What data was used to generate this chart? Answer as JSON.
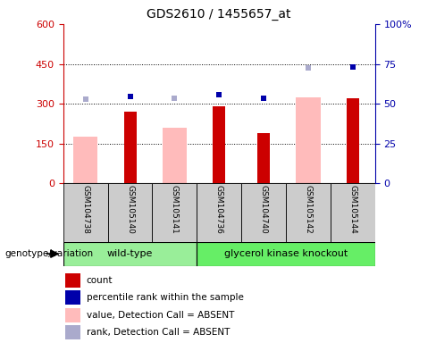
{
  "title": "GDS2610 / 1455657_at",
  "samples": [
    "GSM104738",
    "GSM105140",
    "GSM105141",
    "GSM104736",
    "GSM104740",
    "GSM105142",
    "GSM105144"
  ],
  "count": [
    null,
    270,
    null,
    290,
    190,
    null,
    320
  ],
  "value_absent": [
    175,
    null,
    210,
    null,
    null,
    325,
    null
  ],
  "rank_dark_pct": [
    null,
    54.5,
    null,
    55.5,
    53.5,
    null,
    73.0
  ],
  "rank_absent_pct": [
    53.0,
    null,
    53.5,
    null,
    null,
    72.5,
    null
  ],
  "ylim_left": [
    0,
    600
  ],
  "ylim_right": [
    0,
    100
  ],
  "yticks_left": [
    0,
    150,
    300,
    450,
    600
  ],
  "yticks_right": [
    0,
    25,
    50,
    75,
    100
  ],
  "color_count": "#cc0000",
  "color_rank_dark": "#0000aa",
  "color_value_absent": "#ffbbbb",
  "color_rank_absent": "#aaaacc",
  "color_wt": "#99ee99",
  "color_gk": "#66ee66",
  "plot_bg": "#ffffff",
  "sample_box_bg": "#cccccc",
  "group1_label": "wild-type",
  "group2_label": "glycerol kinase knockout",
  "genotype_label": "genotype/variation",
  "n_wt": 3,
  "n_gk": 4,
  "legend_items": [
    {
      "color": "#cc0000",
      "type": "square",
      "label": "count"
    },
    {
      "color": "#0000aa",
      "type": "square",
      "label": "percentile rank within the sample"
    },
    {
      "color": "#ffbbbb",
      "type": "square",
      "label": "value, Detection Call = ABSENT"
    },
    {
      "color": "#aaaacc",
      "type": "square",
      "label": "rank, Detection Call = ABSENT"
    }
  ]
}
